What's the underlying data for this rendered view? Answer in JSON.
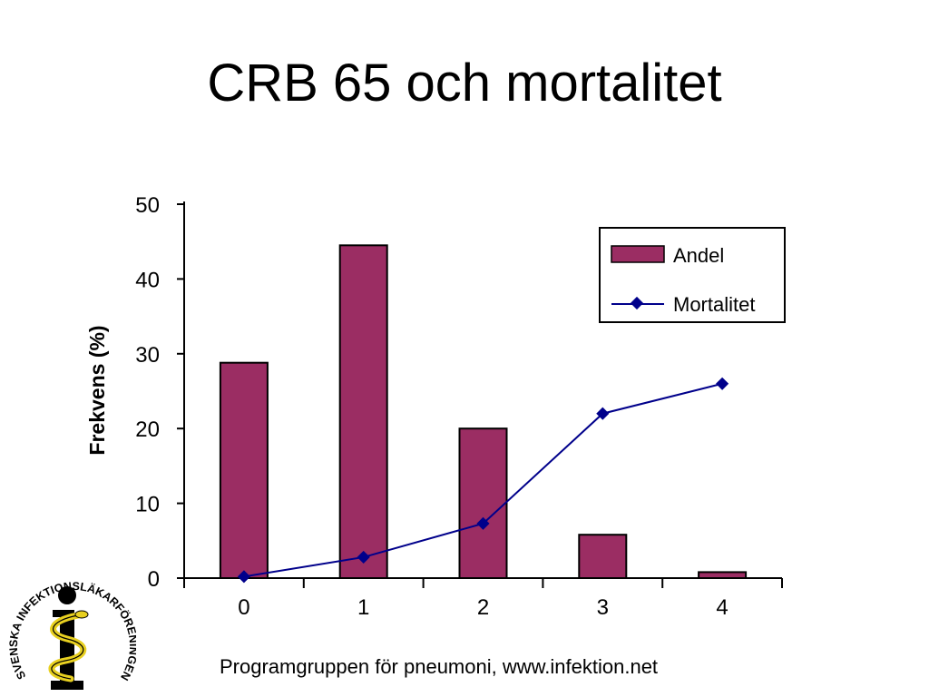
{
  "slide": {
    "title": "CRB 65 och mortalitet",
    "footer": "Programgruppen för pneumoni, www.infektion.net"
  },
  "logo": {
    "text": "SVENSKA INFEKTIONSLÄKARFÖRENINGEN"
  },
  "chart_data": {
    "type": "bar",
    "categories": [
      "0",
      "1",
      "2",
      "3",
      "4"
    ],
    "series": [
      {
        "name": "Andel",
        "type": "bar",
        "values": [
          28.8,
          44.5,
          20.0,
          5.8,
          0.8
        ],
        "color": "#9B2D63"
      },
      {
        "name": "Mortalitet",
        "type": "line",
        "values": [
          0.2,
          2.8,
          7.3,
          22.0,
          26.0
        ],
        "color": "#00008B"
      }
    ],
    "ylabel": "Frekvens (%)",
    "ylim": [
      0,
      50
    ],
    "yticks": [
      0,
      10,
      20,
      30,
      40,
      50
    ],
    "grid": false,
    "legend": "top-right"
  }
}
